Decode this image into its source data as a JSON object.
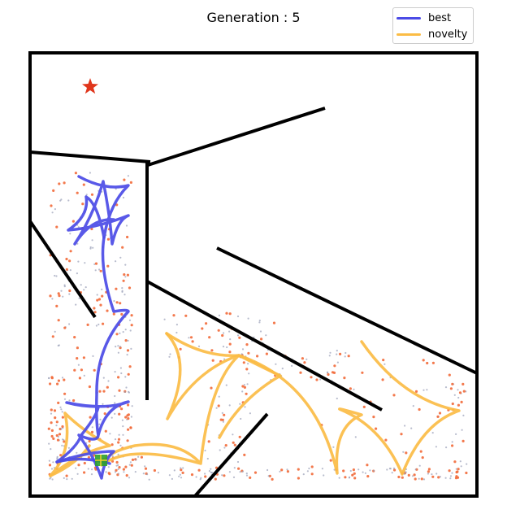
{
  "title": "Generation : 5",
  "legend": {
    "items": [
      {
        "label": "best",
        "color": "#4b4be6"
      },
      {
        "label": "novelty",
        "color": "#fbbc45"
      }
    ]
  },
  "colors": {
    "walls": "#000000",
    "goal": "#e0361c",
    "sample_orange": "#f26a3a",
    "sample_gray": "#9aa0b8",
    "agent_green": "#2ca02c"
  },
  "icons": {
    "goal": "star-icon",
    "agent": "agent-square-icon"
  }
}
